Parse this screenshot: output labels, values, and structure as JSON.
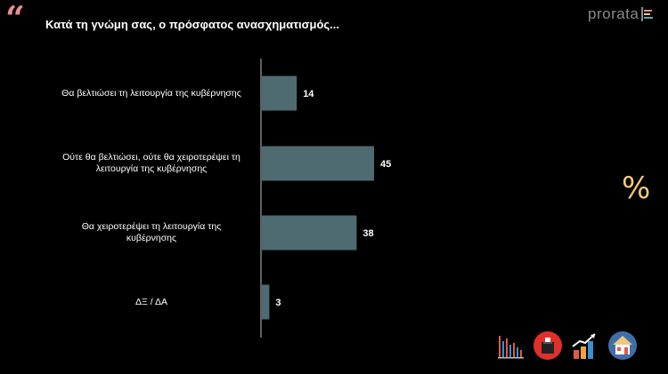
{
  "header": {
    "quote_glyph": "“",
    "title": "Κατά τη γνώμη σας, ο πρόσφατος ανασχηματισμός...",
    "logo": "prorata"
  },
  "side_symbol": "%",
  "chart_data": {
    "type": "bar",
    "orientation": "horizontal",
    "categories": [
      "Θα βελτιώσει τη λειτουργία της κυβέρνησης",
      "Ούτε θα βελτιώσει, ούτε θα χειροτερέψει τη λειτουργία της κυβέρνησης",
      "Θα χειροτερέψει τη λειτουργία της κυβέρνησης",
      "ΔΞ / ΔΑ"
    ],
    "category_lines": [
      [
        "Θα βελτιώσει τη λειτουργία της κυβέρνησης"
      ],
      [
        "Ούτε θα βελτιώσει, ούτε θα χειροτερέψει τη",
        "λειτουργία της κυβέρνησης"
      ],
      [
        "Θα χειροτερέψει τη λειτουργία της",
        "κυβέρνησης"
      ],
      [
        "ΔΞ / ΔΑ"
      ]
    ],
    "values": [
      14,
      45,
      38,
      3
    ],
    "data_labels": [
      "14",
      "45",
      "38",
      "3"
    ],
    "xlim": [
      0,
      100
    ],
    "bar_color": "#4e6b71",
    "grid": false,
    "legend": "none"
  },
  "footer_icons": [
    "bar-chart-icon",
    "ballot-box-icon",
    "growth-chart-icon",
    "house-icon"
  ],
  "colors": {
    "background": "#000000",
    "accent_quote": "#e58f8f",
    "percent": "#f2c77c",
    "bar": "#4e6b71"
  }
}
